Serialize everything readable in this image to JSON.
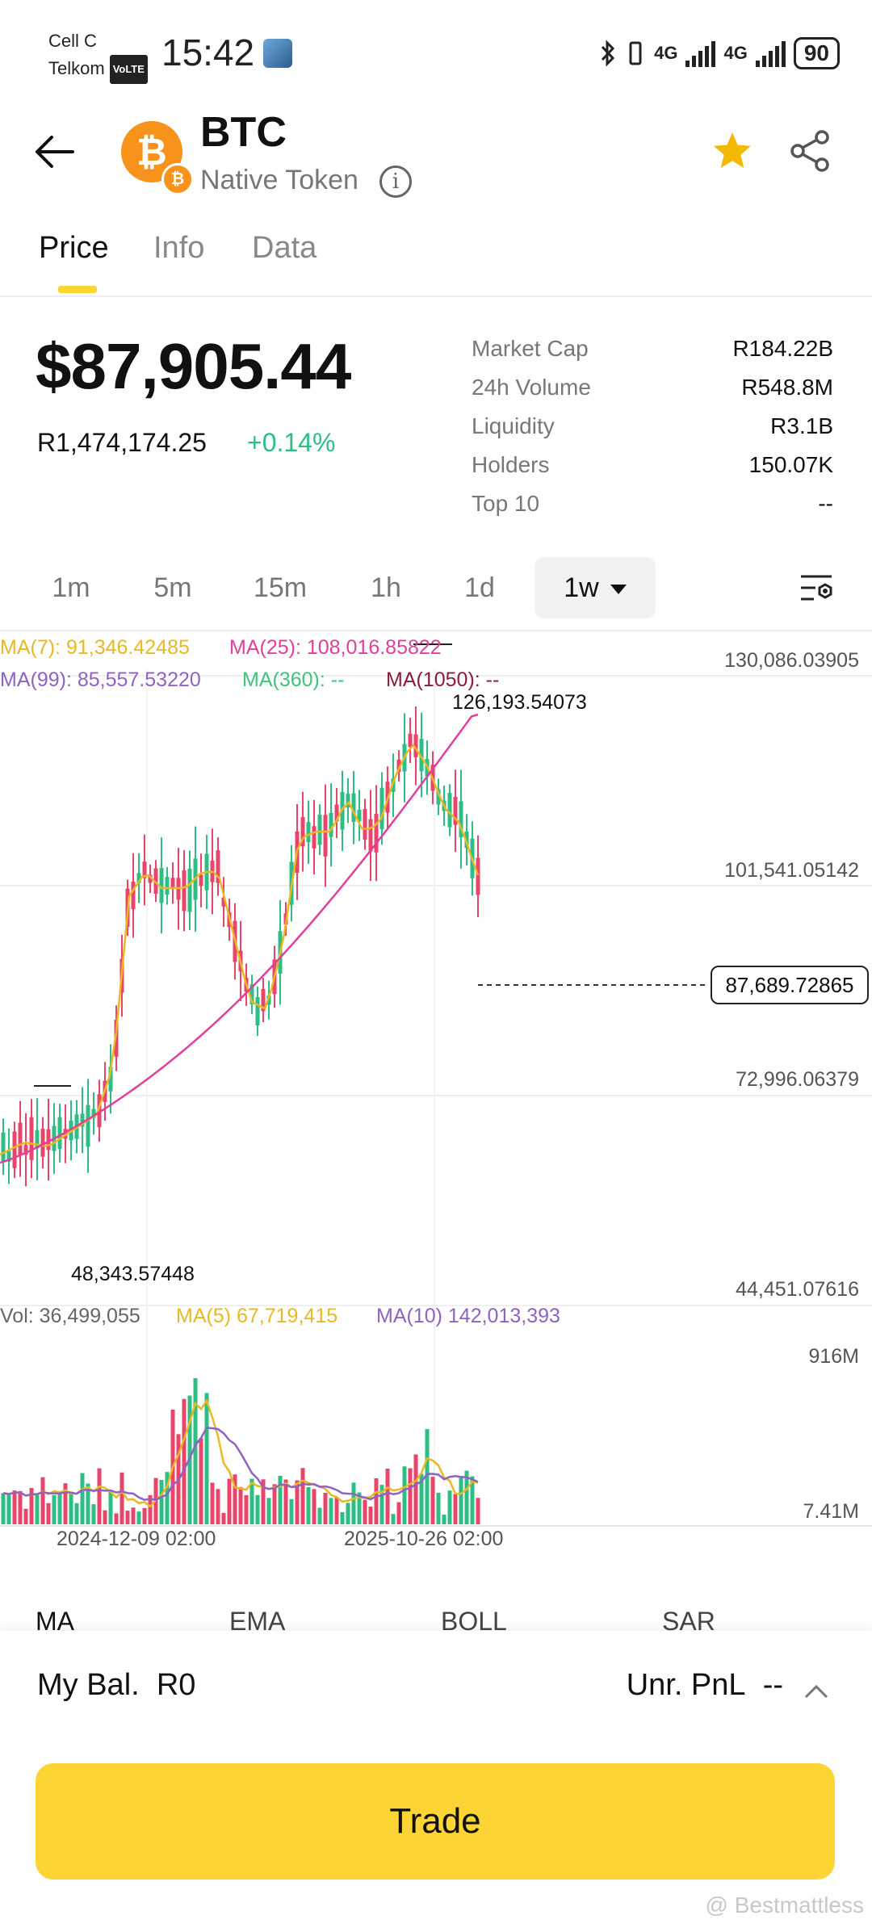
{
  "status_bar": {
    "carrier_line1": "Cell C",
    "carrier_line2": "Telkom",
    "volte": "VoLTE",
    "time": "15:42",
    "net1": "4G",
    "net2": "4G",
    "battery": "90"
  },
  "header": {
    "token_symbol": "BTC",
    "token_subtitle": "Native Token",
    "coin_glyph": "₿",
    "badge_glyph": "₿",
    "star_color": "#f5b800"
  },
  "tabs": [
    {
      "label": "Price",
      "active": true
    },
    {
      "label": "Info",
      "active": false
    },
    {
      "label": "Data",
      "active": false
    }
  ],
  "price": {
    "usd": "$87,905.44",
    "local": "R1,474,174.25",
    "change": "+0.14%"
  },
  "stats": [
    {
      "label": "Market Cap",
      "value": "R184.22B"
    },
    {
      "label": "24h Volume",
      "value": "R548.8M"
    },
    {
      "label": "Liquidity",
      "value": "R3.1B"
    },
    {
      "label": "Holders",
      "value": "150.07K"
    },
    {
      "label": "Top 10",
      "value": "--"
    }
  ],
  "intervals": [
    "1m",
    "5m",
    "15m",
    "1h",
    "1d",
    "1w"
  ],
  "selected_interval": "1w",
  "chart": {
    "ma7": "MA(7): 91,346.42485",
    "ma25": "MA(25): 108,016.85822",
    "ma99": "MA(99): 85,557.53220",
    "ma360": "MA(360): --",
    "ma1050": "MA(1050): --",
    "y_labels": [
      "130,086.03905",
      "101,541.05142",
      "72,996.06379",
      "44,451.07616"
    ],
    "last_price": "87,689.72865",
    "high_label": "126,193.54073",
    "low_label": "48,343.57448",
    "vol": "Vol: 36,499,055",
    "vol_ma5": "MA(5) 67,719,415",
    "vol_ma10": "MA(10) 142,013,393",
    "vol_y_labels": [
      "916M",
      "7.41M"
    ],
    "x_labels": [
      "2024-12-09 02:00",
      "2025-10-26 02:00"
    ],
    "colors": {
      "up": "#2ebd85",
      "down": "#e9446a",
      "ma7": "#e8b923",
      "ma25": "#e0409c",
      "ma99": "#8e63c2",
      "ma360": "#3ec47c",
      "ma1050": "#8a1c3c"
    }
  },
  "indicators": [
    "MA",
    "EMA",
    "BOLL",
    "SAR"
  ],
  "bottom": {
    "balance_label": "My Bal.",
    "balance_value": "R0",
    "pnl_label": "Unr. PnL",
    "pnl_value": "--",
    "trade_label": "Trade"
  },
  "watermark": "@ Bestmattless"
}
